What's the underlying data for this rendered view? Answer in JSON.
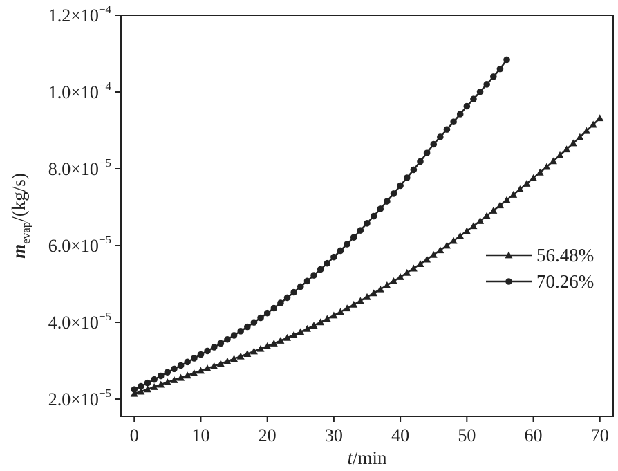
{
  "chart_data": {
    "type": "line",
    "xlabel": {
      "var": "t",
      "unit": "/min"
    },
    "ylabel": {
      "var": "m",
      "sub": "evap",
      "unit": "/(kg/s)"
    },
    "xlim": [
      -2,
      72
    ],
    "ylim": [
      1.55e-05,
      0.00012
    ],
    "x_ticks": [
      0,
      10,
      20,
      30,
      40,
      50,
      60,
      70
    ],
    "x_tick_labels": [
      "0",
      "10",
      "20",
      "30",
      "40",
      "50",
      "60",
      "70"
    ],
    "y_ticks": [
      {
        "value": 2e-05,
        "mantissa": "2.0×10",
        "exp": "−5"
      },
      {
        "value": 4e-05,
        "mantissa": "4.0×10",
        "exp": "−5"
      },
      {
        "value": 6e-05,
        "mantissa": "6.0×10",
        "exp": "−5"
      },
      {
        "value": 8e-05,
        "mantissa": "8.0×10",
        "exp": "−5"
      },
      {
        "value": 0.0001,
        "mantissa": "1.0×10",
        "exp": "−4"
      },
      {
        "value": 0.00012,
        "mantissa": "1.2×10",
        "exp": "−4"
      }
    ],
    "grid": false,
    "legend_position": "center-right",
    "series": [
      {
        "name": "56.48%",
        "marker": "triangle",
        "color": "#222222",
        "x": [
          0,
          5,
          10,
          15,
          20,
          25,
          30,
          35,
          40,
          45,
          50,
          55,
          60,
          65,
          70
        ],
        "y": [
          2.14e-05,
          2.44e-05,
          2.74e-05,
          3.05e-05,
          3.38e-05,
          3.75e-05,
          4.18e-05,
          4.66e-05,
          5.18e-05,
          5.76e-05,
          6.38e-05,
          7.05e-05,
          7.76e-05,
          8.51e-05,
          9.32e-05
        ]
      },
      {
        "name": "70.26%",
        "marker": "circle",
        "color": "#222222",
        "x": [
          0,
          5,
          10,
          15,
          20,
          25,
          30,
          35,
          40,
          45,
          50,
          55,
          56
        ],
        "y": [
          2.25e-05,
          2.7e-05,
          3.16e-05,
          3.66e-05,
          4.24e-05,
          4.93e-05,
          5.7e-05,
          6.58e-05,
          7.56e-05,
          8.64e-05,
          9.63e-05,
          0.000106,
          0.0001084
        ]
      }
    ]
  }
}
